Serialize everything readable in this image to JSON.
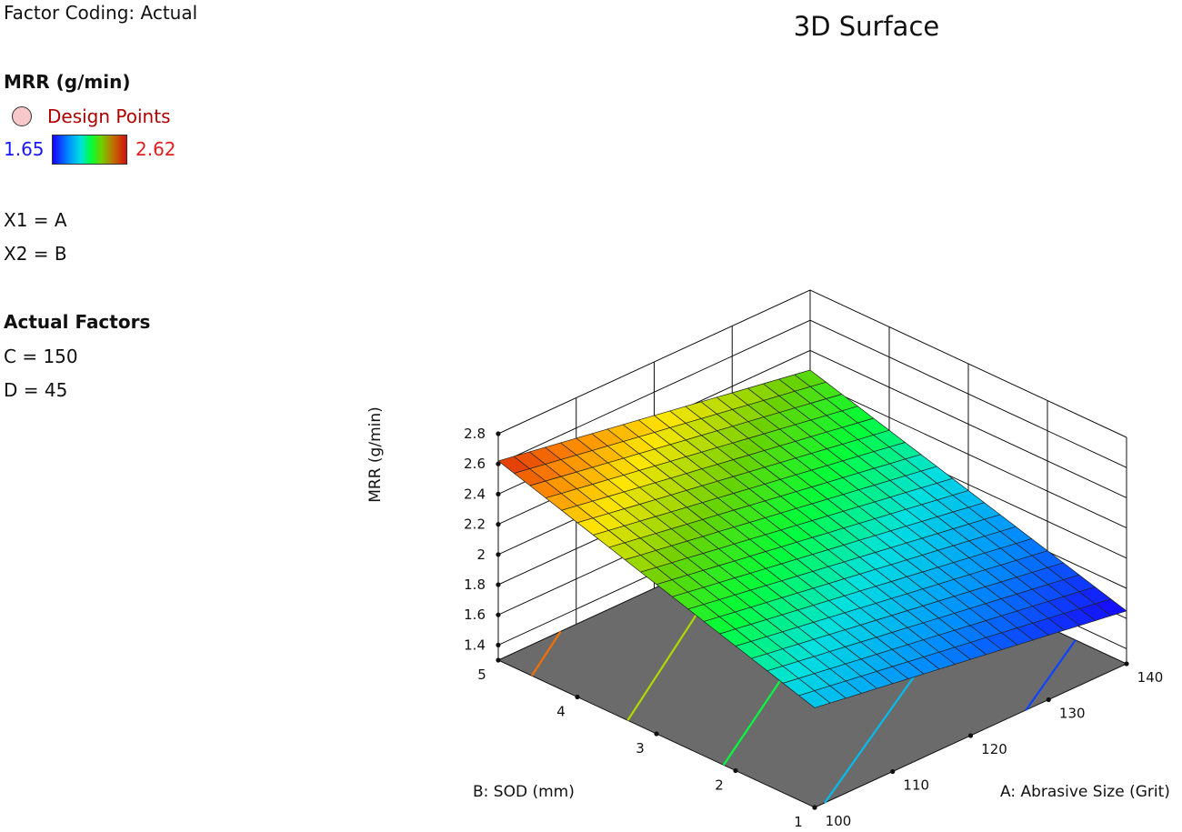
{
  "panel": {
    "factor_coding": "Factor Coding: Actual",
    "response_title": "MRR (g/min)",
    "design_points_label": "Design Points",
    "colorbar_min": "1.65",
    "colorbar_max": "2.62",
    "x1_def": "X1 = A",
    "x2_def": "X2 = B",
    "actual_factors_title": "Actual Factors",
    "factor_c": "C = 150",
    "factor_d": "D = 45"
  },
  "colors": {
    "floor": "#6b6b6b",
    "grid": "#111111",
    "design_point": "#f9c9c9"
  },
  "chart_data": {
    "type": "surface3d",
    "title": "3D Surface",
    "x_axis": {
      "label": "A: Abrasive Size (Grit)",
      "range": [
        100,
        140
      ],
      "ticks": [
        100,
        110,
        120,
        130,
        140
      ]
    },
    "y_axis": {
      "label": "B: SOD (mm)",
      "range": [
        1,
        5
      ],
      "ticks": [
        1,
        2,
        3,
        4,
        5
      ]
    },
    "z_axis": {
      "label": "MRR (g/min)",
      "range": [
        1.3,
        2.8
      ],
      "ticks": [
        1.4,
        1.6,
        1.8,
        2.0,
        2.2,
        2.4,
        2.6,
        2.8
      ],
      "tick_labels": [
        "1.4",
        "1.6",
        "1.8",
        "2",
        "2.2",
        "2.4",
        "2.6",
        "2.8"
      ]
    },
    "surface": {
      "model": "planar",
      "corners": [
        {
          "A": 100,
          "B": 1,
          "MRR": 1.96
        },
        {
          "A": 140,
          "B": 1,
          "MRR": 1.65
        },
        {
          "A": 100,
          "B": 5,
          "MRR": 2.62
        },
        {
          "A": 140,
          "B": 5,
          "MRR": 2.27
        }
      ],
      "grid_divisions": 20
    },
    "color_range": [
      1.65,
      2.62
    ],
    "contour_levels": [
      1.75,
      1.95,
      2.15,
      2.35,
      2.55
    ],
    "design_points": [
      {
        "A": 120,
        "B": 3,
        "MRR": 1.75
      }
    ]
  }
}
